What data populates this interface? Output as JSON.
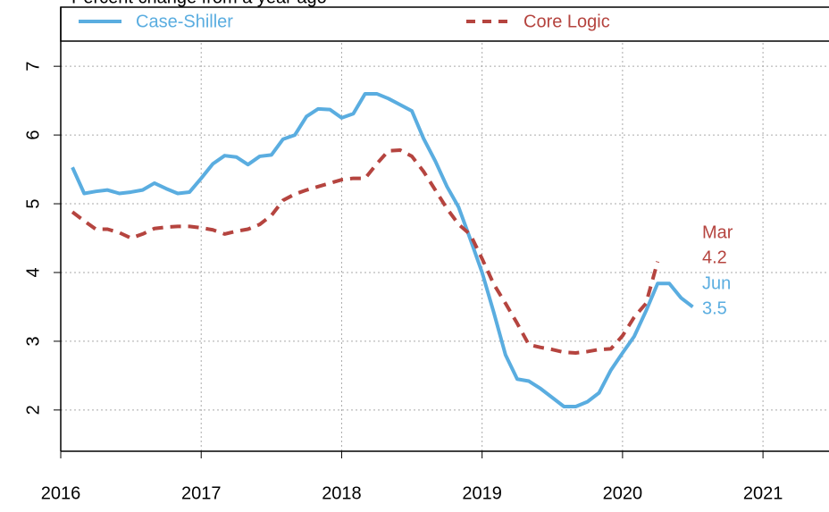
{
  "chart_data": {
    "type": "line",
    "title": "Percent change from a year ago",
    "annotations": [
      "Mar",
      "4.2",
      "Jun",
      "3.5"
    ],
    "series": [
      {
        "name": "Case-Shiller",
        "color": "#5aade0",
        "dash": false,
        "x": [
          2016.083,
          2016.167,
          2016.25,
          2016.333,
          2016.417,
          2016.5,
          2016.583,
          2016.667,
          2016.75,
          2016.833,
          2016.917,
          2017.0,
          2017.083,
          2017.167,
          2017.25,
          2017.333,
          2017.417,
          2017.5,
          2017.583,
          2017.667,
          2017.75,
          2017.833,
          2017.917,
          2018.0,
          2018.083,
          2018.167,
          2018.25,
          2018.333,
          2018.417,
          2018.5,
          2018.583,
          2018.667,
          2018.75,
          2018.833,
          2018.917,
          2019.0,
          2019.083,
          2019.167,
          2019.25,
          2019.333,
          2019.417,
          2019.5,
          2019.583,
          2019.667,
          2019.75,
          2019.833,
          2019.917,
          2020.0,
          2020.083,
          2020.167,
          2020.25,
          2020.333,
          2020.417,
          2020.5
        ],
        "values": [
          5.53,
          5.15,
          5.18,
          5.2,
          5.15,
          5.17,
          5.2,
          5.3,
          5.22,
          5.15,
          5.17,
          5.37,
          5.58,
          5.7,
          5.68,
          5.57,
          5.69,
          5.71,
          5.94,
          6.0,
          6.27,
          6.38,
          6.37,
          6.25,
          6.31,
          6.6,
          6.6,
          6.53,
          6.44,
          6.35,
          5.95,
          5.62,
          5.25,
          4.95,
          4.48,
          4.0,
          3.42,
          2.8,
          2.45,
          2.42,
          2.31,
          2.18,
          2.05,
          2.05,
          2.12,
          2.25,
          2.58,
          2.83,
          3.07,
          3.44,
          3.84,
          3.84,
          3.63,
          3.5
        ]
      },
      {
        "name": "Core Logic",
        "color": "#b5443f",
        "dash": true,
        "x": [
          2016.083,
          2016.167,
          2016.25,
          2016.333,
          2016.417,
          2016.5,
          2016.583,
          2016.667,
          2016.75,
          2016.833,
          2016.917,
          2017.0,
          2017.083,
          2017.167,
          2017.25,
          2017.333,
          2017.417,
          2017.5,
          2017.583,
          2017.667,
          2017.75,
          2017.833,
          2017.917,
          2018.0,
          2018.083,
          2018.167,
          2018.25,
          2018.333,
          2018.417,
          2018.5,
          2018.583,
          2018.667,
          2018.75,
          2018.833,
          2018.917,
          2019.0,
          2019.083,
          2019.167,
          2019.25,
          2019.333,
          2019.417,
          2019.5,
          2019.583,
          2019.667,
          2019.75,
          2019.833,
          2019.917,
          2020.0,
          2020.083,
          2020.167,
          2020.25
        ],
        "values": [
          4.88,
          4.75,
          4.63,
          4.63,
          4.58,
          4.5,
          4.56,
          4.64,
          4.66,
          4.67,
          4.67,
          4.65,
          4.62,
          4.56,
          4.6,
          4.63,
          4.7,
          4.83,
          5.05,
          5.14,
          5.2,
          5.25,
          5.3,
          5.35,
          5.37,
          5.37,
          5.58,
          5.77,
          5.78,
          5.69,
          5.47,
          5.2,
          4.93,
          4.7,
          4.55,
          4.2,
          3.83,
          3.55,
          3.26,
          2.95,
          2.91,
          2.88,
          2.84,
          2.83,
          2.85,
          2.88,
          2.89,
          3.08,
          3.35,
          3.55,
          4.16
        ]
      }
    ],
    "xlim": [
      2016,
      2021.47
    ],
    "xticks": [
      2016,
      2017,
      2018,
      2019,
      2020,
      2021
    ],
    "ylim": [
      1.4,
      7.86
    ],
    "yticks": [
      2,
      3,
      4,
      5,
      6,
      7
    ],
    "grid": true
  }
}
